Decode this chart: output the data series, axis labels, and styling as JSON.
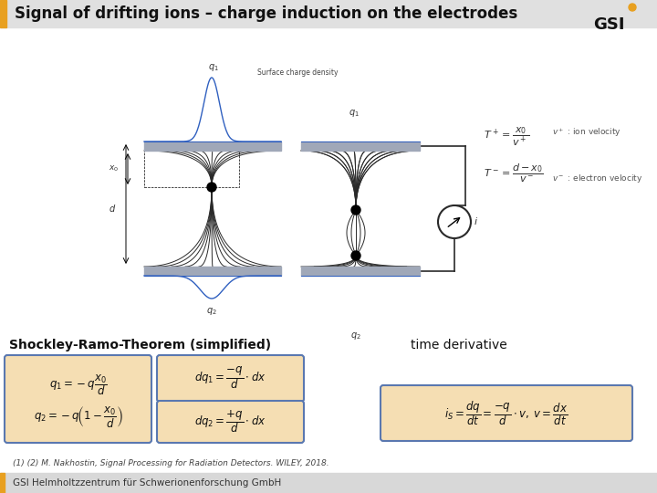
{
  "title": "Signal of drifting ions – charge induction on the electrodes",
  "title_bar_color": "#E8A020",
  "title_bg_color": "#E0E0E0",
  "title_fontsize": 12,
  "bg_color": "#FFFFFF",
  "footer_bg": "#D8D8D8",
  "footer_text": "GSI Helmholtzzentrum für Schwerionenforschung GmbH",
  "footer_fontsize": 7.5,
  "shockley_text": "Shockley-Ramo-Theorem (simplified)",
  "time_deriv_text": "time derivative",
  "ref_text": "(1) (2) M. Nakhostin, Signal Processing for Radiation Detectors. WILEY, 2018.",
  "formula_box_face": "#F5DEB3",
  "formula_box_edge": "#5A78B0",
  "plate_color": "#A0A8B8",
  "line_color": "#2a2a2a",
  "blue_color": "#3060C0",
  "gsi_orange": "#E8A020"
}
